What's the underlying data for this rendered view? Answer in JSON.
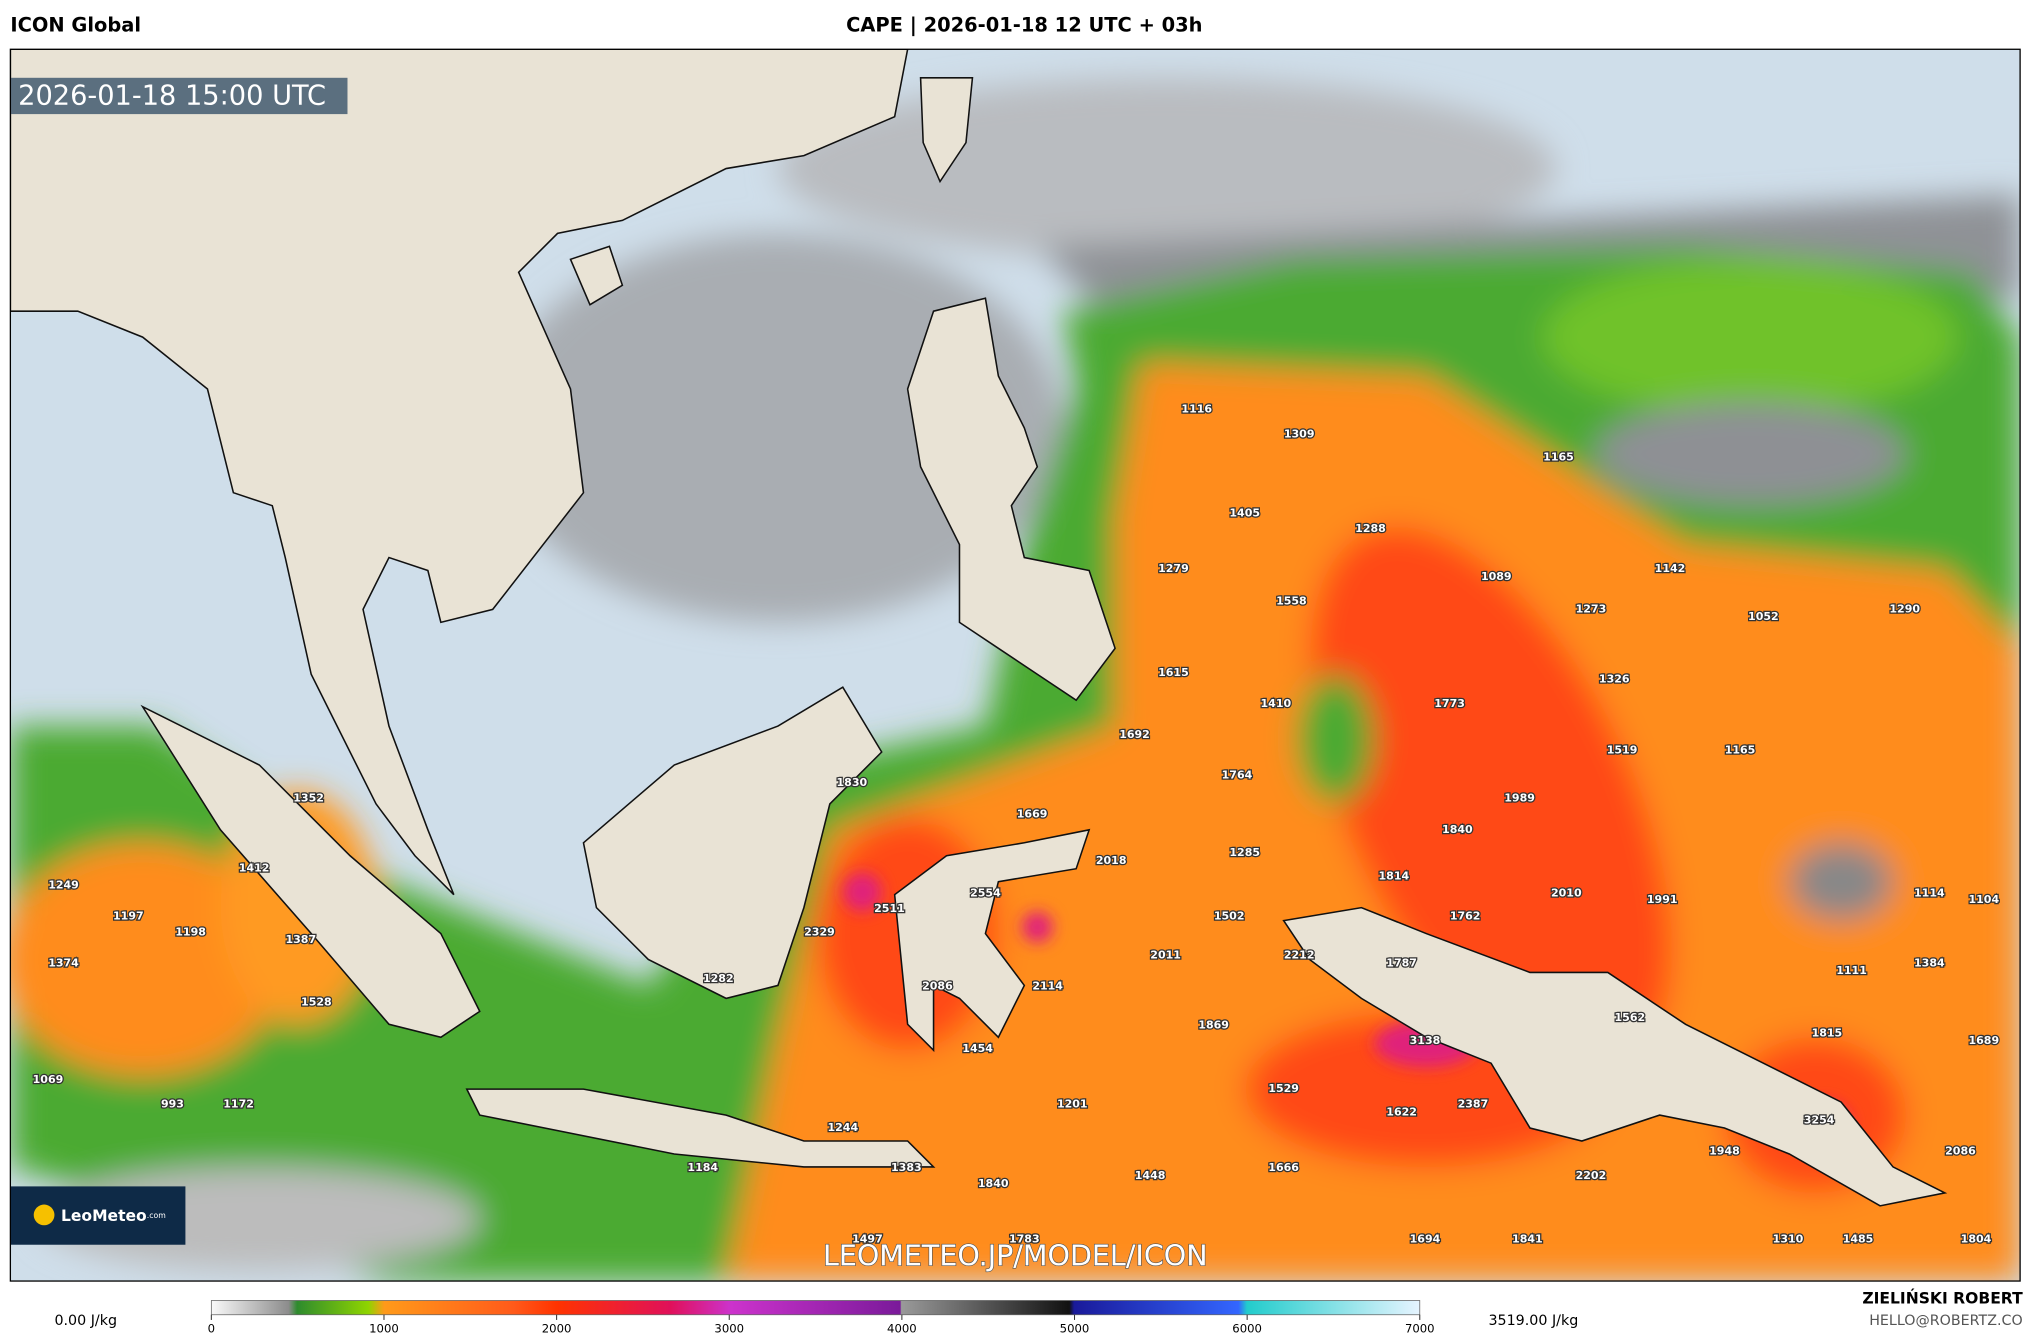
{
  "header": {
    "model": "ICON Global",
    "title": "CAPE | 2026-01-18 12 UTC + 03h"
  },
  "map": {
    "valid_time": "2026-01-18 15:00 UTC",
    "watermark": "LEOMETEO.JP/MODEL/ICON",
    "logo_name": "LeoMeteo",
    "logo_suffix": ".com",
    "cape_labels": [
      1116,
      1309,
      1165,
      1405,
      1288,
      1279,
      1089,
      1142,
      1558,
      1273,
      1052,
      1290,
      1615,
      1326,
      1410,
      1773,
      1692,
      1519,
      1165,
      1764,
      1830,
      1989,
      1352,
      1669,
      1840,
      2018,
      1285,
      1412,
      1814,
      2554,
      2010,
      1991,
      1114,
      1104,
      1249,
      2511,
      1502,
      1762,
      1197,
      1198,
      2329,
      1387,
      2212,
      2011,
      1787,
      1384,
      1374,
      1111,
      1282,
      2086,
      2114,
      1528,
      1562,
      1869,
      1815,
      1689,
      3138,
      1454,
      1069,
      1529,
      993,
      1172,
      1201,
      2387,
      1622,
      3254,
      1244,
      1948,
      2086,
      1184,
      1383,
      1448,
      1666,
      2202,
      1840,
      1497,
      1783,
      1694,
      1841,
      1310,
      1485,
      1804
    ]
  },
  "legend": {
    "min_label": "0.00 J/kg",
    "max_label": "3519.00 J/kg",
    "ticks": [
      0,
      1000,
      2000,
      3000,
      4000,
      5000,
      6000,
      7000
    ]
  },
  "credit": {
    "author": "ZIELIŃSKI ROBERT",
    "email": "HELLO@ROBERTZ.CO"
  }
}
